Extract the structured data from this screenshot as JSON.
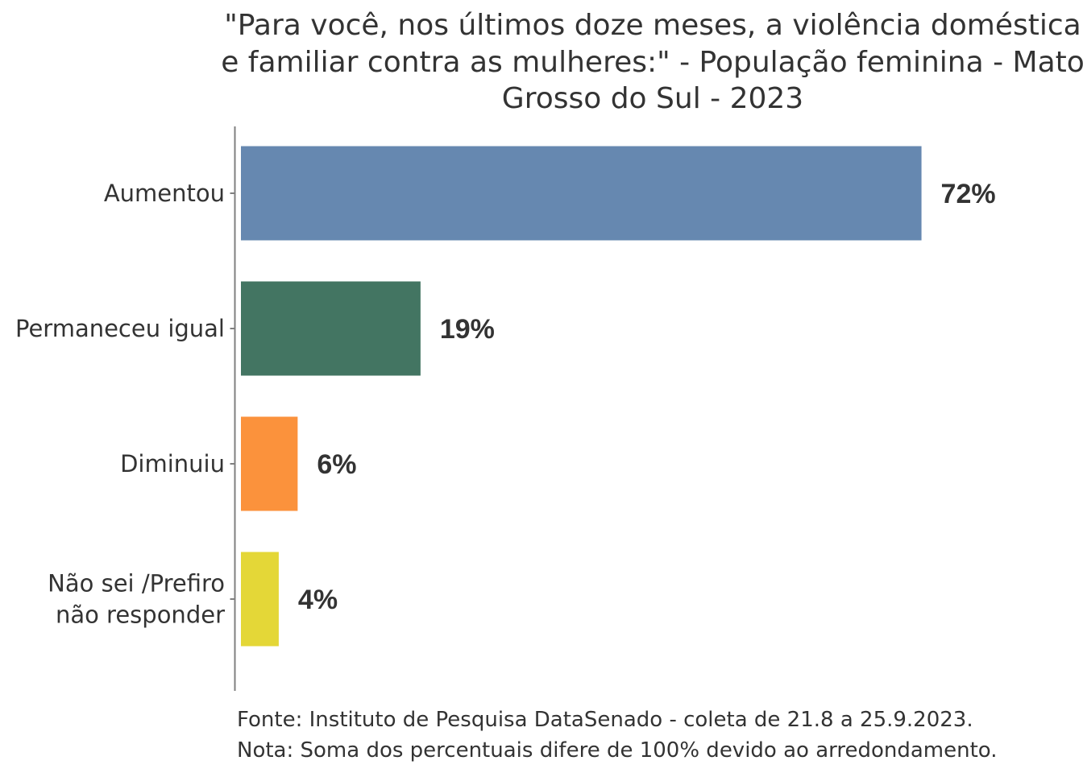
{
  "chart_data": {
    "type": "bar",
    "orientation": "horizontal",
    "title_lines": [
      "\"Para você, nos últimos doze meses, a violência doméstica",
      "e familiar contra as mulheres:\" - População feminina - Mato",
      "Grosso do Sul - 2023"
    ],
    "categories": [
      [
        "Aumentou"
      ],
      [
        "Permaneceu igual"
      ],
      [
        "Diminuiu"
      ],
      [
        "Não sei /Prefiro",
        "não responder"
      ]
    ],
    "values": [
      72,
      19,
      6,
      4
    ],
    "value_labels": [
      "72%",
      "19%",
      "6%",
      "4%"
    ],
    "colors": [
      "#6688B0",
      "#437562",
      "#FB923C",
      "#E4D737"
    ],
    "xlim": [
      0,
      100
    ],
    "grid": false,
    "legend": "none",
    "caption_lines": [
      "Fonte: Instituto de Pesquisa DataSenado - coleta de 21.8 a 25.9.2023.",
      "Nota: Soma dos percentuais difere de 100% devido ao arredondamento."
    ]
  }
}
